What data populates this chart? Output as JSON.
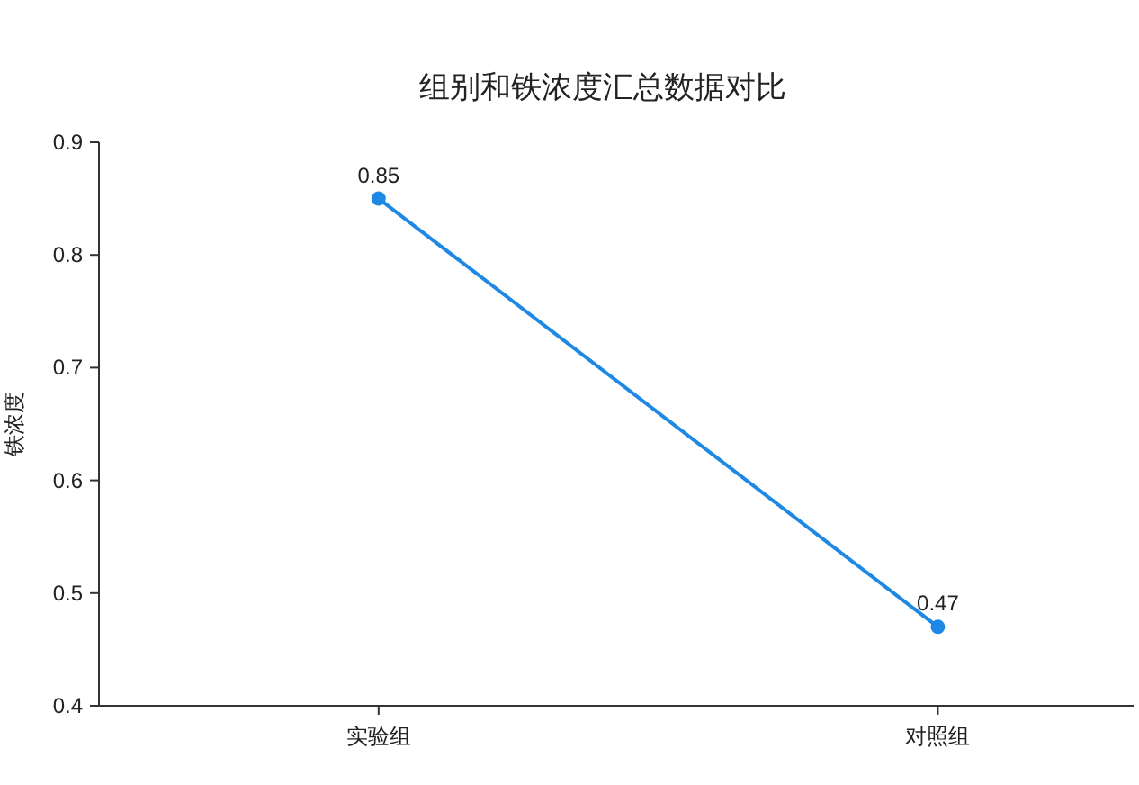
{
  "chart_data": {
    "type": "line",
    "title": "组别和铁浓度汇总数据对比",
    "ylabel": "铁浓度",
    "categories": [
      "实验组",
      "对照组"
    ],
    "series": [
      {
        "color": "#1e88e5",
        "values": [
          0.85,
          0.47
        ]
      }
    ],
    "ylim": [
      0.4,
      0.9
    ],
    "yticks": [
      0.4,
      0.5,
      0.6,
      0.7,
      0.8,
      0.9
    ],
    "data_labels": true,
    "marker": "circle",
    "line_style": "solid",
    "grid": false
  }
}
